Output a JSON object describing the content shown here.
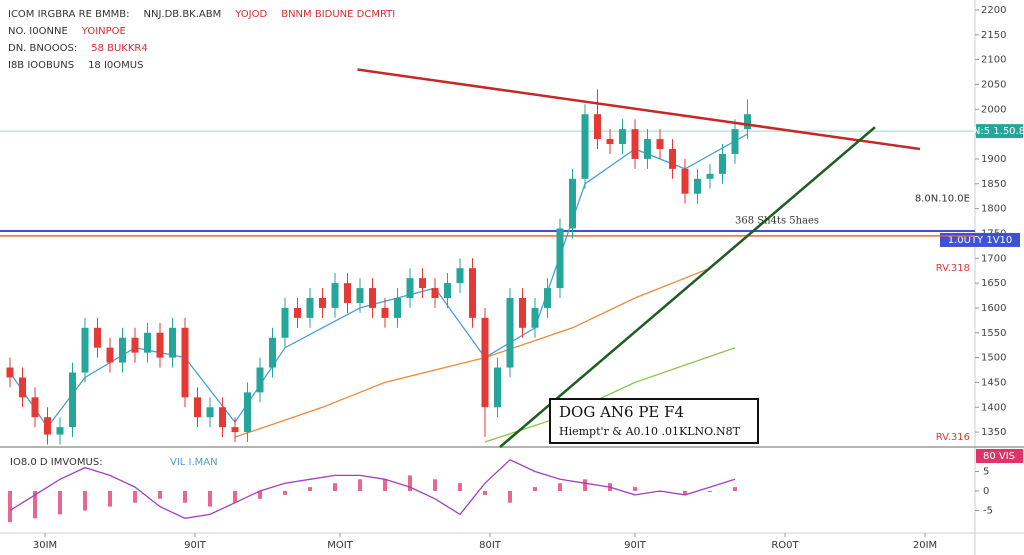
{
  "chart_data": {
    "type": "candlestick",
    "header": [
      [
        {
          "text": "ICOM IRGBRA RE BMMB:",
          "color": "#333333"
        },
        {
          "text": "NNJ.DB.BK.ABM",
          "color": "#333333"
        },
        {
          "text": "YOJOD",
          "color": "#d32f2f"
        },
        {
          "text": "BNNM BIDUNE DCMRTI",
          "color": "#d32f2f"
        }
      ],
      [
        {
          "text": "NO. I0ONNE",
          "color": "#333333"
        },
        {
          "text": "YOINPOE",
          "color": "#d32f2f"
        }
      ],
      [
        {
          "text": "DN. BNOOOS:",
          "color": "#333333"
        },
        {
          "text": "58 BUKKR4",
          "color": "#d32f2f"
        }
      ],
      [
        {
          "text": "I8B IOOBUNS",
          "color": "#333333"
        },
        {
          "text": "18 I0OMUS",
          "color": "#333333"
        }
      ]
    ],
    "open": [
      1480,
      1460,
      1420,
      1380,
      1345,
      1360,
      1470,
      1560,
      1520,
      1490,
      1540,
      1510,
      1550,
      1500,
      1560,
      1420,
      1380,
      1400,
      1360,
      1350,
      1430,
      1480,
      1540,
      1600,
      1580,
      1620,
      1600,
      1650,
      1610,
      1640,
      1600,
      1580,
      1620,
      1660,
      1640,
      1620,
      1650,
      1680,
      1580,
      1400,
      1480,
      1620,
      1560,
      1600,
      1640,
      1760,
      1860,
      1990,
      1940,
      1930,
      1960,
      1900,
      1940,
      1920,
      1880,
      1830,
      1860,
      1870,
      1910,
      1960
    ],
    "high": [
      1500,
      1480,
      1440,
      1400,
      1380,
      1490,
      1580,
      1580,
      1540,
      1560,
      1560,
      1570,
      1570,
      1580,
      1580,
      1440,
      1420,
      1420,
      1380,
      1450,
      1500,
      1560,
      1620,
      1620,
      1640,
      1640,
      1670,
      1670,
      1660,
      1660,
      1620,
      1640,
      1680,
      1680,
      1660,
      1670,
      1700,
      1700,
      1600,
      1500,
      1640,
      1640,
      1620,
      1660,
      1780,
      1880,
      2010,
      2040,
      1960,
      1980,
      1980,
      1960,
      1960,
      1940,
      1900,
      1880,
      1890,
      1930,
      1980,
      2020
    ],
    "low": [
      1440,
      1400,
      1360,
      1325,
      1325,
      1340,
      1450,
      1500,
      1470,
      1470,
      1490,
      1490,
      1480,
      1480,
      1400,
      1360,
      1360,
      1340,
      1330,
      1330,
      1410,
      1460,
      1520,
      1560,
      1560,
      1580,
      1580,
      1590,
      1590,
      1580,
      1560,
      1560,
      1600,
      1620,
      1600,
      1600,
      1630,
      1560,
      1340,
      1380,
      1460,
      1540,
      1540,
      1580,
      1620,
      1740,
      1840,
      1920,
      1910,
      1910,
      1880,
      1880,
      1900,
      1860,
      1810,
      1810,
      1840,
      1850,
      1890,
      1940
    ],
    "close": [
      1460,
      1420,
      1380,
      1345,
      1360,
      1470,
      1560,
      1520,
      1490,
      1540,
      1510,
      1550,
      1500,
      1560,
      1420,
      1380,
      1400,
      1360,
      1350,
      1430,
      1480,
      1540,
      1600,
      1580,
      1620,
      1600,
      1650,
      1610,
      1640,
      1600,
      1580,
      1620,
      1660,
      1640,
      1620,
      1650,
      1680,
      1580,
      1400,
      1480,
      1620,
      1560,
      1600,
      1640,
      1760,
      1860,
      1990,
      1940,
      1930,
      1960,
      1900,
      1940,
      1920,
      1880,
      1830,
      1860,
      1870,
      1910,
      1960,
      1990
    ],
    "up_color": "#26a69a",
    "down_color": "#e53935",
    "series": [
      {
        "color": "#4a9fd8",
        "x": [
          0,
          3,
          6,
          10,
          14,
          18,
          22,
          28,
          34,
          38,
          42,
          46,
          50,
          54,
          59
        ],
        "values": [
          1470,
          1360,
          1460,
          1520,
          1500,
          1370,
          1520,
          1600,
          1640,
          1500,
          1560,
          1850,
          1920,
          1880,
          1950
        ]
      },
      {
        "color": "#f0883a",
        "x": [
          18,
          25,
          30,
          38,
          45,
          50,
          56
        ],
        "values": [
          1340,
          1400,
          1450,
          1500,
          1560,
          1620,
          1680
        ]
      },
      {
        "color": "#8bc34a",
        "x": [
          38,
          44,
          50,
          58
        ],
        "values": [
          1330,
          1380,
          1450,
          1520
        ]
      }
    ],
    "trendlines": [
      {
        "color": "#c62828",
        "x": [
          27.8,
          72.8
        ],
        "values": [
          2080,
          1920
        ]
      },
      {
        "color": "#1b5e20",
        "x": [
          39.2,
          69.2
        ],
        "values": [
          1320,
          1964
        ]
      }
    ],
    "levels": [
      {
        "value": 1755,
        "color": "#3f51d8",
        "label": "1.0UTY 1V10"
      },
      {
        "value": 1745,
        "color": "#e06030"
      },
      {
        "value": 1956,
        "color": "#26a69a",
        "label": "N:5 1.50.8"
      }
    ],
    "notes": [
      {
        "text": "8.0N.10.0E",
        "value": 1820,
        "color": "#333333"
      },
      {
        "text": "RV.318",
        "value": 1680,
        "color": "#e53935"
      },
      {
        "text": "RV.316",
        "value": 1340,
        "color": "#e53935"
      }
    ],
    "annotation": {
      "text": "368 Sh4ts 5haes",
      "x": 58,
      "value": 1775
    },
    "callout": {
      "title": "DOG AN6 PE F4",
      "text": "Hiempt'r & A0.10 .01KLNO.N8T"
    },
    "xlim": [
      -0.8,
      77.2
    ],
    "ylim": [
      1320,
      2220
    ],
    "yticks": [
      1350,
      1400,
      1450,
      1500,
      1550,
      1600,
      1650,
      1700,
      1750,
      1800,
      1850,
      1900,
      1950,
      2000,
      2050,
      2100,
      2150,
      2200
    ],
    "xticks": [
      {
        "value": 2.8,
        "label": "30IM"
      },
      {
        "value": 14.8,
        "label": "90IT"
      },
      {
        "value": 26.4,
        "label": "MOIT"
      },
      {
        "value": 38.4,
        "label": "80IT"
      },
      {
        "value": 50,
        "label": "90IT"
      },
      {
        "value": 62,
        "label": "RO0T"
      },
      {
        "value": 73.2,
        "label": "20IM"
      }
    ],
    "indicator": {
      "title": "IO8.0 D IMVOMUS:",
      "subtitle": "VIL I.MAN",
      "label": "80 VIS",
      "ylim": [
        -10,
        10
      ],
      "yticks": [
        -5,
        0,
        5
      ],
      "x": [
        0,
        2,
        4,
        6,
        8,
        10,
        12,
        14,
        16,
        18,
        20,
        22,
        24,
        26,
        28,
        30,
        32,
        34,
        36,
        38,
        40,
        42,
        44,
        46,
        48,
        50,
        52,
        54,
        56,
        58
      ],
      "histogram": [
        -8,
        -7,
        -6,
        -5,
        -4,
        -3,
        -2,
        -3,
        -4,
        -3,
        -2,
        -1,
        1,
        2,
        3,
        3,
        4,
        3,
        2,
        -1,
        -3,
        1,
        2,
        3,
        2,
        1,
        0,
        -1,
        0,
        1
      ],
      "line": [
        -5,
        -1,
        3,
        6,
        4,
        1,
        -4,
        -7,
        -6,
        -3,
        0,
        2,
        3,
        4,
        4,
        3,
        1,
        -2,
        -6,
        2,
        8,
        5,
        3,
        2,
        1,
        -1,
        0,
        -1,
        1,
        3
      ],
      "hist_color": "#e0336a",
      "line_color": "#a040c0"
    }
  }
}
